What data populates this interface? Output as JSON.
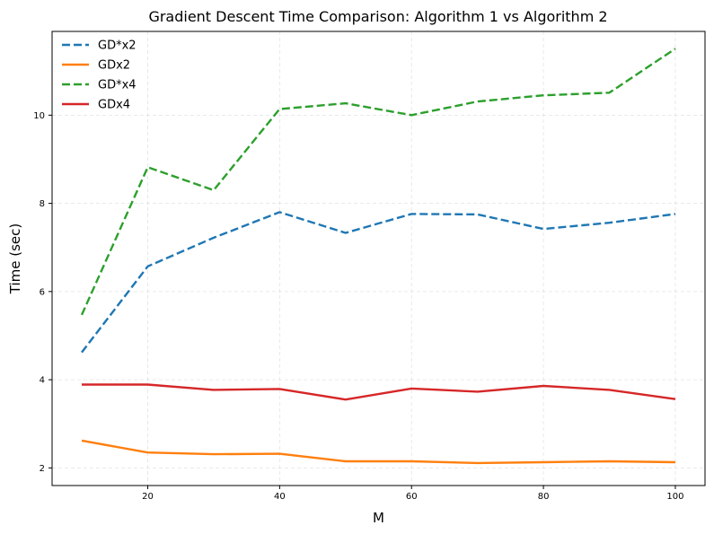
{
  "chart_data": {
    "type": "line",
    "title": "Gradient Descent Time Comparison: Algorithm 1 vs Algorithm 2",
    "xlabel": "M",
    "ylabel": "Time (sec)",
    "xlim": [
      5.5,
      104.5
    ],
    "ylim": [
      1.6,
      11.9
    ],
    "xticks": [
      20,
      40,
      60,
      80,
      100
    ],
    "yticks": [
      2,
      4,
      6,
      8,
      10
    ],
    "grid": true,
    "legend_position": "top-left",
    "x": [
      10,
      20,
      30,
      40,
      50,
      60,
      70,
      80,
      90,
      100
    ],
    "series": [
      {
        "name": "GD*x2",
        "color": "#1f77b4",
        "dashed": true,
        "values": [
          4.62,
          6.57,
          7.22,
          7.8,
          7.33,
          7.76,
          7.75,
          7.42,
          7.56,
          7.76
        ]
      },
      {
        "name": "GDx2",
        "color": "#ff7f0e",
        "dashed": false,
        "values": [
          2.62,
          2.35,
          2.31,
          2.32,
          2.15,
          2.15,
          2.11,
          2.13,
          2.15,
          2.13
        ]
      },
      {
        "name": "GD*x4",
        "color": "#2ca02c",
        "dashed": true,
        "values": [
          5.47,
          8.82,
          8.3,
          10.14,
          10.27,
          10.0,
          10.31,
          10.45,
          10.51,
          11.51
        ]
      },
      {
        "name": "GDx4",
        "color": "#d62728",
        "dashed": false,
        "values": [
          3.89,
          3.89,
          3.77,
          3.79,
          3.55,
          3.8,
          3.73,
          3.86,
          3.77,
          3.56
        ]
      }
    ]
  }
}
